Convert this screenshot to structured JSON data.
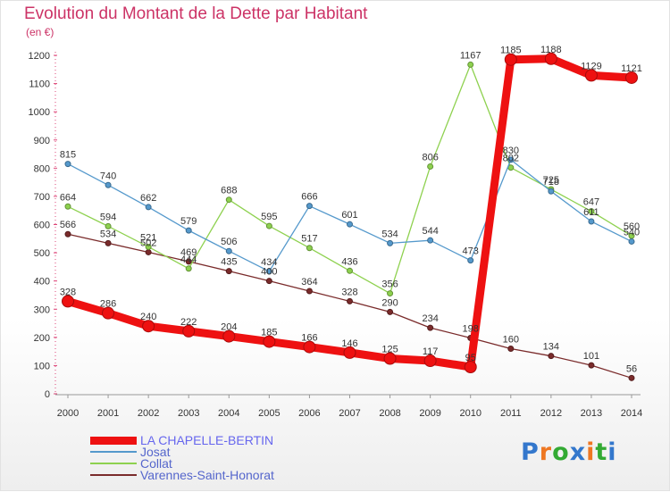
{
  "chart_data": {
    "type": "line",
    "title": "Evolution du Montant de la Dette par Habitant",
    "unit": "(en €)",
    "categories": [
      "2000",
      "2001",
      "2002",
      "2003",
      "2004",
      "2005",
      "2006",
      "2007",
      "2008",
      "2009",
      "2010",
      "2011",
      "2012",
      "2013",
      "2014"
    ],
    "ylim": [
      0,
      1200
    ],
    "yticks": [
      0,
      100,
      200,
      300,
      400,
      500,
      600,
      700,
      800,
      900,
      1000,
      1100,
      1200
    ],
    "grid": false,
    "legend_position": "bottom-left",
    "series": [
      {
        "name": "Varennes-Saint-Honorat",
        "color": "#7a2b2b",
        "values": [
          566,
          534,
          502,
          469,
          435,
          400,
          364,
          328,
          290,
          234,
          198,
          160,
          134,
          101,
          56
        ]
      },
      {
        "name": "Collat",
        "color": "#8ed14f",
        "values": [
          664,
          594,
          521,
          444,
          688,
          595,
          517,
          436,
          356,
          806,
          1167,
          802,
          725,
          647,
          560
        ]
      },
      {
        "name": "Josat",
        "color": "#5599cc",
        "values": [
          815,
          740,
          662,
          579,
          506,
          434,
          666,
          601,
          534,
          544,
          473,
          830,
          718,
          611,
          540
        ]
      },
      {
        "name": "LA CHAPELLE-BERTIN",
        "color": "#ee1111",
        "values": [
          328,
          286,
          240,
          222,
          204,
          185,
          166,
          146,
          125,
          117,
          95,
          1185,
          1188,
          1129,
          1121
        ]
      }
    ],
    "legend_order": [
      "LA CHAPELLE-BERTIN",
      "Josat",
      "Collat",
      "Varennes-Saint-Honorat"
    ]
  },
  "brand": {
    "text": "Proxiti",
    "letters": [
      "P",
      "r",
      "o",
      "x",
      "i",
      "t",
      "i"
    ],
    "colors": [
      "#3377cc",
      "#ee7722",
      "#33aa33",
      "#3377cc",
      "#ee7722",
      "#33aa33",
      "#3377cc"
    ]
  }
}
